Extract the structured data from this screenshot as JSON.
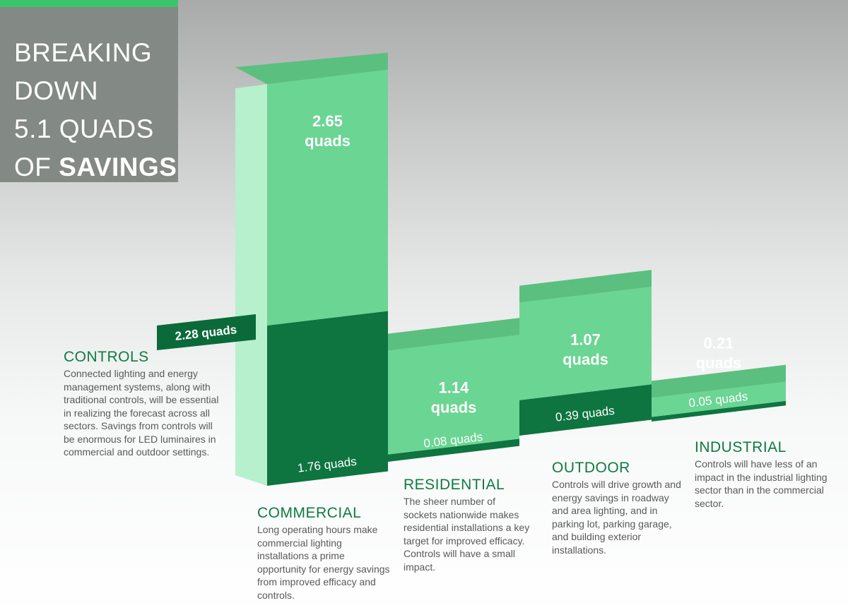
{
  "title": {
    "line1": "BREAKING",
    "line2": "DOWN",
    "line3": "5.1 QUADS",
    "line4_plain": "OF ",
    "line4_bold": "SAVINGS"
  },
  "colors": {
    "efficacy_face": "#6bd593",
    "efficacy_top": "#5bbf80",
    "controls_face": "#0e7440",
    "controls_top": "#0b6436",
    "side_light": "#b7f0cc",
    "base_edge": "#0b6a3a",
    "title_box": "#838985",
    "accent": "#3cc46d",
    "heading": "#0f7b40"
  },
  "chart_data": {
    "type": "bar",
    "stacked": true,
    "units": "quads",
    "total_label": "5.1 QUADS",
    "categories": [
      "COMMERCIAL",
      "RESIDENTIAL",
      "OUTDOOR",
      "INDUSTRIAL"
    ],
    "series": [
      {
        "name": "",
        "values": [
          1.76,
          0.08,
          0.39,
          0.05
        ],
        "labels": [
          "1.76 quads",
          "0.08 quads",
          "0.39 quads",
          "0.05 quads"
        ]
      },
      {
        "name": "",
        "values": [
          2.65,
          1.14,
          1.07,
          0.21
        ],
        "labels": [
          "2.65",
          "1.14",
          "1.07",
          "0.21"
        ]
      }
    ],
    "unit_label": "quads",
    "controls_total": {
      "value": 2.28,
      "label": "2.28 quads"
    }
  },
  "sectors": {
    "controls": {
      "heading": "CONTROLS",
      "body": "Connected lighting and energy management systems, along with traditional controls, will be essential in realizing the forecast across all sectors. Savings from controls will be enormous for LED luminaires in commercial and outdoor settings."
    },
    "commercial": {
      "heading": "COMMERCIAL",
      "body": "Long operating hours make commercial lighting installations a prime opportunity for energy savings from improved efficacy and controls."
    },
    "residential": {
      "heading": "RESIDENTIAL",
      "body": "The sheer number of sockets nationwide makes residential installations a key target for improved efficacy. Controls will have a small impact."
    },
    "outdoor": {
      "heading": "OUTDOOR",
      "body": "Controls will drive growth and energy savings in roadway and area lighting, and in parking lot, parking garage, and building exterior installations."
    },
    "industrial": {
      "heading": "INDUSTRIAL",
      "body": "Controls will have less of an impact in the industrial lighting sector than in the commercial sector."
    }
  }
}
